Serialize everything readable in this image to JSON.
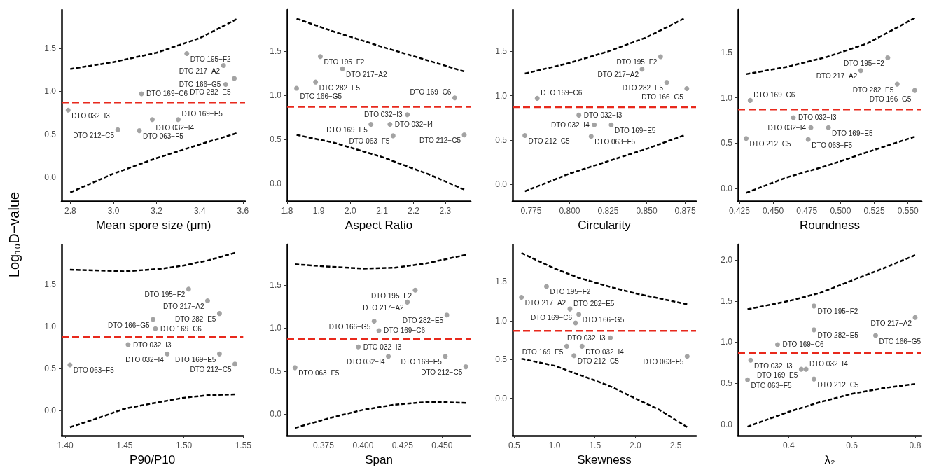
{
  "chart_data": [
    {
      "type": "scatter",
      "xlabel": "Mean spore size (μm)",
      "ylabel": "Log₁₀D−value",
      "xlim": [
        2.76,
        3.61
      ],
      "ylim": [
        -0.28,
        1.95
      ],
      "xticks": [
        {
          "value": 2.8,
          "label": "2.8"
        },
        {
          "value": 3,
          "label": "3.0"
        },
        {
          "value": 3.2,
          "label": "3.2"
        },
        {
          "value": 3.4,
          "label": "3.4"
        },
        {
          "value": 3.6,
          "label": "3.6"
        }
      ],
      "yticks": [
        {
          "value": 0,
          "label": "0.0"
        },
        {
          "value": 0.5,
          "label": "0.5"
        },
        {
          "value": 1,
          "label": "1.0"
        },
        {
          "value": 1.5,
          "label": "1.5"
        }
      ],
      "series": [
        {
          "marker": "circle",
          "color": "#8c8c8c",
          "x": [
            3.34,
            3.51,
            3.56,
            3.52,
            3.13,
            2.79,
            3.18,
            3.3,
            3.02,
            3.12
          ],
          "values": [
            1.44,
            1.3,
            1.15,
            1.08,
            0.97,
            0.78,
            0.67,
            0.67,
            0.55,
            0.54
          ]
        },
        {
          "type": "line",
          "marker": "none",
          "line_style": "dashed",
          "color": "#000000",
          "x": [
            2.8,
            3.0,
            3.2,
            3.4,
            3.57
          ],
          "values": [
            1.26,
            1.34,
            1.45,
            1.62,
            1.84
          ]
        },
        {
          "type": "line",
          "marker": "none",
          "line_style": "dashed",
          "color": "#000000",
          "x": [
            2.8,
            3.0,
            3.2,
            3.4,
            3.57
          ],
          "values": [
            -0.18,
            0.04,
            0.22,
            0.38,
            0.51
          ]
        }
      ],
      "ref_lines": [
        {
          "axis": "y",
          "value": 0.87,
          "color": "#e8291c",
          "line_style": "dashed"
        }
      ],
      "annotations": [
        {
          "text": "DTO 195−F2",
          "x": 3.34,
          "y": 1.44
        },
        {
          "text": "DTO 217−A2",
          "x": 3.51,
          "y": 1.3
        },
        {
          "text": "DTO 282−E5",
          "x": 3.56,
          "y": 1.15
        },
        {
          "text": "DTO 166−G5",
          "x": 3.52,
          "y": 1.08
        },
        {
          "text": "DTO 169−C6",
          "x": 3.13,
          "y": 0.97
        },
        {
          "text": "DTO 032−I3",
          "x": 2.79,
          "y": 0.78
        },
        {
          "text": "DTO 032−I4",
          "x": 3.18,
          "y": 0.67
        },
        {
          "text": "DTO 169−E5",
          "x": 3.3,
          "y": 0.67
        },
        {
          "text": "DTO 212−C5",
          "x": 3.02,
          "y": 0.55
        },
        {
          "text": "DTO 063−F5",
          "x": 3.12,
          "y": 0.54
        }
      ]
    },
    {
      "type": "scatter",
      "xlabel": "Aspect Ratio",
      "xlim": [
        1.8,
        2.38
      ],
      "ylim": [
        -0.2,
        1.97
      ],
      "xticks": [
        {
          "value": 1.8,
          "label": "1.8"
        },
        {
          "value": 1.9,
          "label": "1.9"
        },
        {
          "value": 2,
          "label": "2.0"
        },
        {
          "value": 2.1,
          "label": "2.1"
        },
        {
          "value": 2.2,
          "label": "2.2"
        },
        {
          "value": 2.3,
          "label": "2.3"
        }
      ],
      "yticks": [
        {
          "value": 0,
          "label": "0.0"
        },
        {
          "value": 0.5,
          "label": "0.5"
        },
        {
          "value": 1,
          "label": "1.0"
        },
        {
          "value": 1.5,
          "label": "1.5"
        }
      ],
      "series": [
        {
          "marker": "circle",
          "color": "#8c8c8c",
          "x": [
            1.905,
            1.975,
            1.89,
            1.83,
            2.33,
            2.18,
            2.125,
            2.065,
            2.36,
            2.135
          ],
          "values": [
            1.44,
            1.3,
            1.15,
            1.08,
            0.97,
            0.78,
            0.67,
            0.67,
            0.55,
            0.54
          ]
        },
        {
          "type": "line",
          "marker": "none",
          "line_style": "dashed",
          "color": "#000000",
          "x": [
            1.83,
            1.95,
            2.1,
            2.25,
            2.36
          ],
          "values": [
            1.87,
            1.72,
            1.55,
            1.39,
            1.27
          ]
        },
        {
          "type": "line",
          "marker": "none",
          "line_style": "dashed",
          "color": "#000000",
          "x": [
            1.83,
            1.95,
            2.1,
            2.25,
            2.36
          ],
          "values": [
            0.55,
            0.46,
            0.3,
            0.1,
            -0.07
          ]
        }
      ],
      "ref_lines": [
        {
          "axis": "y",
          "value": 0.87,
          "color": "#e8291c",
          "line_style": "dashed"
        }
      ],
      "annotations": [
        {
          "text": "DTO 195−F2",
          "x": 1.905,
          "y": 1.44
        },
        {
          "text": "DTO 217−A2",
          "x": 1.975,
          "y": 1.3
        },
        {
          "text": "DTO 282−E5",
          "x": 1.89,
          "y": 1.15
        },
        {
          "text": "DTO 166−G5",
          "x": 1.83,
          "y": 1.08
        },
        {
          "text": "DTO 169−C6",
          "x": 2.33,
          "y": 0.97
        },
        {
          "text": "DTO 032−I3",
          "x": 2.18,
          "y": 0.78
        },
        {
          "text": "DTO 032−I4",
          "x": 2.125,
          "y": 0.67
        },
        {
          "text": "DTO 169−E5",
          "x": 2.065,
          "y": 0.67
        },
        {
          "text": "DTO 212−C5",
          "x": 2.36,
          "y": 0.55
        },
        {
          "text": "DTO 063−F5",
          "x": 2.135,
          "y": 0.54
        }
      ]
    },
    {
      "type": "scatter",
      "xlabel": "Circularity",
      "xlim": [
        0.763,
        0.882
      ],
      "ylim": [
        -0.19,
        1.97
      ],
      "xticks": [
        {
          "value": 0.775,
          "label": "0.775"
        },
        {
          "value": 0.8,
          "label": "0.800"
        },
        {
          "value": 0.825,
          "label": "0.825"
        },
        {
          "value": 0.85,
          "label": "0.850"
        },
        {
          "value": 0.875,
          "label": "0.875"
        }
      ],
      "yticks": [
        {
          "value": 0,
          "label": "0.0"
        },
        {
          "value": 0.5,
          "label": "0.5"
        },
        {
          "value": 1,
          "label": "1.0"
        },
        {
          "value": 1.5,
          "label": "1.5"
        }
      ],
      "series": [
        {
          "marker": "circle",
          "color": "#8c8c8c",
          "x": [
            0.859,
            0.847,
            0.863,
            0.876,
            0.779,
            0.806,
            0.816,
            0.827,
            0.771,
            0.814
          ],
          "values": [
            1.44,
            1.3,
            1.15,
            1.08,
            0.97,
            0.78,
            0.67,
            0.67,
            0.55,
            0.54
          ]
        },
        {
          "type": "line",
          "marker": "none",
          "line_style": "dashed",
          "color": "#000000",
          "x": [
            0.771,
            0.8,
            0.825,
            0.85,
            0.874
          ],
          "values": [
            1.25,
            1.37,
            1.5,
            1.66,
            1.87
          ]
        },
        {
          "type": "line",
          "marker": "none",
          "line_style": "dashed",
          "color": "#000000",
          "x": [
            0.771,
            0.8,
            0.825,
            0.85,
            0.874
          ],
          "values": [
            -0.08,
            0.12,
            0.26,
            0.4,
            0.55
          ]
        }
      ],
      "ref_lines": [
        {
          "axis": "y",
          "value": 0.87,
          "color": "#e8291c",
          "line_style": "dashed"
        }
      ],
      "annotations": [
        {
          "text": "DTO 195−F2",
          "x": 0.859,
          "y": 1.44
        },
        {
          "text": "DTO 217−A2",
          "x": 0.847,
          "y": 1.3
        },
        {
          "text": "DTO 282−E5",
          "x": 0.863,
          "y": 1.15
        },
        {
          "text": "DTO 166−G5",
          "x": 0.876,
          "y": 1.08
        },
        {
          "text": "DTO 169−C6",
          "x": 0.779,
          "y": 0.97
        },
        {
          "text": "DTO 032−I3",
          "x": 0.806,
          "y": 0.78
        },
        {
          "text": "DTO 032−I4",
          "x": 0.816,
          "y": 0.67
        },
        {
          "text": "DTO 169−E5",
          "x": 0.827,
          "y": 0.67
        },
        {
          "text": "DTO 212−C5",
          "x": 0.771,
          "y": 0.55
        },
        {
          "text": "DTO 063−F5",
          "x": 0.814,
          "y": 0.54
        }
      ]
    },
    {
      "type": "scatter",
      "xlabel": "Roundness",
      "xlim": [
        0.424,
        0.56
      ],
      "ylim": [
        -0.14,
        1.97
      ],
      "xticks": [
        {
          "value": 0.425,
          "label": "0.425"
        },
        {
          "value": 0.45,
          "label": "0.450"
        },
        {
          "value": 0.475,
          "label": "0.475"
        },
        {
          "value": 0.5,
          "label": "0.500"
        },
        {
          "value": 0.525,
          "label": "0.525"
        },
        {
          "value": 0.55,
          "label": "0.550"
        }
      ],
      "yticks": [
        {
          "value": 0,
          "label": "0.0"
        },
        {
          "value": 0.5,
          "label": "0.5"
        },
        {
          "value": 1,
          "label": "1.0"
        },
        {
          "value": 1.5,
          "label": "1.5"
        }
      ],
      "series": [
        {
          "marker": "circle",
          "color": "#8c8c8c",
          "x": [
            0.535,
            0.515,
            0.542,
            0.555,
            0.433,
            0.465,
            0.478,
            0.491,
            0.43,
            0.476
          ],
          "values": [
            1.44,
            1.3,
            1.15,
            1.08,
            0.97,
            0.78,
            0.67,
            0.67,
            0.55,
            0.54
          ]
        },
        {
          "type": "line",
          "marker": "none",
          "line_style": "dashed",
          "color": "#000000",
          "x": [
            0.43,
            0.46,
            0.49,
            0.52,
            0.555
          ],
          "values": [
            1.26,
            1.34,
            1.45,
            1.6,
            1.88
          ]
        },
        {
          "type": "line",
          "marker": "none",
          "line_style": "dashed",
          "color": "#000000",
          "x": [
            0.43,
            0.46,
            0.49,
            0.52,
            0.555
          ],
          "values": [
            -0.05,
            0.12,
            0.25,
            0.4,
            0.57
          ]
        }
      ],
      "ref_lines": [
        {
          "axis": "y",
          "value": 0.87,
          "color": "#e8291c",
          "line_style": "dashed"
        }
      ],
      "annotations": [
        {
          "text": "DTO 195−F2",
          "x": 0.535,
          "y": 1.44
        },
        {
          "text": "DTO 217−A2",
          "x": 0.515,
          "y": 1.3
        },
        {
          "text": "DTO 282−E5",
          "x": 0.542,
          "y": 1.15
        },
        {
          "text": "DTO 166−G5",
          "x": 0.555,
          "y": 1.08
        },
        {
          "text": "DTO 169−C6",
          "x": 0.433,
          "y": 0.97
        },
        {
          "text": "DTO 032−I3",
          "x": 0.465,
          "y": 0.78
        },
        {
          "text": "DTO 032−I4",
          "x": 0.478,
          "y": 0.67
        },
        {
          "text": "DTO 169−E5",
          "x": 0.491,
          "y": 0.67
        },
        {
          "text": "DTO 212−C5",
          "x": 0.43,
          "y": 0.55
        },
        {
          "text": "DTO 063−F5",
          "x": 0.476,
          "y": 0.54
        }
      ]
    },
    {
      "type": "scatter",
      "xlabel": "P90/P10",
      "xlim": [
        1.397,
        1.55
      ],
      "ylim": [
        -0.3,
        1.97
      ],
      "xticks": [
        {
          "value": 1.4,
          "label": "1.40"
        },
        {
          "value": 1.45,
          "label": "1.45"
        },
        {
          "value": 1.5,
          "label": "1.50"
        },
        {
          "value": 1.55,
          "label": "1.55"
        }
      ],
      "yticks": [
        {
          "value": 0,
          "label": "0.0"
        },
        {
          "value": 0.5,
          "label": "0.5"
        },
        {
          "value": 1,
          "label": "1.0"
        },
        {
          "value": 1.5,
          "label": "1.5"
        }
      ],
      "series": [
        {
          "marker": "circle",
          "color": "#8c8c8c",
          "x": [
            1.504,
            1.52,
            1.53,
            1.474,
            1.476,
            1.453,
            1.486,
            1.53,
            1.543,
            1.404
          ],
          "values": [
            1.44,
            1.3,
            1.15,
            1.08,
            0.97,
            0.78,
            0.67,
            0.67,
            0.55,
            0.54
          ]
        },
        {
          "type": "line",
          "marker": "none",
          "line_style": "dashed",
          "color": "#000000",
          "x": [
            1.404,
            1.43,
            1.45,
            1.48,
            1.5,
            1.52,
            1.543
          ],
          "values": [
            1.67,
            1.66,
            1.65,
            1.68,
            1.72,
            1.78,
            1.87
          ]
        },
        {
          "type": "line",
          "marker": "none",
          "line_style": "dashed",
          "color": "#000000",
          "x": [
            1.404,
            1.43,
            1.45,
            1.48,
            1.5,
            1.52,
            1.543
          ],
          "values": [
            -0.2,
            -0.08,
            0.02,
            0.1,
            0.15,
            0.18,
            0.19
          ]
        }
      ],
      "ref_lines": [
        {
          "axis": "y",
          "value": 0.87,
          "color": "#e8291c",
          "line_style": "dashed"
        }
      ],
      "annotations": [
        {
          "text": "DTO 195−F2",
          "x": 1.504,
          "y": 1.44
        },
        {
          "text": "DTO 217−A2",
          "x": 1.52,
          "y": 1.3
        },
        {
          "text": "DTO 282−E5",
          "x": 1.53,
          "y": 1.15
        },
        {
          "text": "DTO 166−G5",
          "x": 1.474,
          "y": 1.08
        },
        {
          "text": "DTO 169−C6",
          "x": 1.476,
          "y": 0.97
        },
        {
          "text": "DTO 032−I3",
          "x": 1.453,
          "y": 0.78
        },
        {
          "text": "DTO 032−I4",
          "x": 1.486,
          "y": 0.67
        },
        {
          "text": "DTO 169−E5",
          "x": 1.53,
          "y": 0.67
        },
        {
          "text": "DTO 212−C5",
          "x": 1.543,
          "y": 0.55
        },
        {
          "text": "DTO 063−F5",
          "x": 1.404,
          "y": 0.54
        }
      ]
    },
    {
      "type": "scatter",
      "xlabel": "Span",
      "xlim": [
        0.352,
        0.468
      ],
      "ylim": [
        -0.25,
        1.97
      ],
      "xticks": [
        {
          "value": 0.375,
          "label": "0.375"
        },
        {
          "value": 0.4,
          "label": "0.400"
        },
        {
          "value": 0.425,
          "label": "0.425"
        },
        {
          "value": 0.45,
          "label": "0.450"
        }
      ],
      "yticks": [
        {
          "value": 0,
          "label": "0.0"
        },
        {
          "value": 0.5,
          "label": "0.5"
        },
        {
          "value": 1,
          "label": "1.0"
        },
        {
          "value": 1.5,
          "label": "1.5"
        }
      ],
      "series": [
        {
          "marker": "circle",
          "color": "#8c8c8c",
          "x": [
            0.433,
            0.428,
            0.453,
            0.407,
            0.41,
            0.397,
            0.416,
            0.452,
            0.465,
            0.357
          ],
          "values": [
            1.44,
            1.3,
            1.15,
            1.08,
            0.97,
            0.78,
            0.67,
            0.67,
            0.55,
            0.54
          ]
        },
        {
          "type": "line",
          "marker": "none",
          "line_style": "dashed",
          "color": "#000000",
          "x": [
            0.357,
            0.38,
            0.4,
            0.42,
            0.44,
            0.465
          ],
          "values": [
            1.74,
            1.71,
            1.69,
            1.7,
            1.75,
            1.85
          ]
        },
        {
          "type": "line",
          "marker": "none",
          "line_style": "dashed",
          "color": "#000000",
          "x": [
            0.357,
            0.38,
            0.4,
            0.42,
            0.44,
            0.45,
            0.465
          ],
          "values": [
            -0.16,
            -0.04,
            0.05,
            0.11,
            0.14,
            0.14,
            0.13
          ]
        }
      ],
      "ref_lines": [
        {
          "axis": "y",
          "value": 0.87,
          "color": "#e8291c",
          "line_style": "dashed"
        }
      ],
      "annotations": [
        {
          "text": "DTO 195−F2",
          "x": 0.433,
          "y": 1.44
        },
        {
          "text": "DTO 217−A2",
          "x": 0.428,
          "y": 1.3
        },
        {
          "text": "DTO 282−E5",
          "x": 0.453,
          "y": 1.15
        },
        {
          "text": "DTO 166−G5",
          "x": 0.407,
          "y": 1.08
        },
        {
          "text": "DTO 169−C6",
          "x": 0.41,
          "y": 0.97
        },
        {
          "text": "DTO 032−I3",
          "x": 0.397,
          "y": 0.78
        },
        {
          "text": "DTO 032−I4",
          "x": 0.416,
          "y": 0.67
        },
        {
          "text": "DTO 169−E5",
          "x": 0.452,
          "y": 0.67
        },
        {
          "text": "DTO 212−C5",
          "x": 0.465,
          "y": 0.55
        },
        {
          "text": "DTO 063−F5",
          "x": 0.357,
          "y": 0.54
        }
      ]
    },
    {
      "type": "scatter",
      "xlabel": "Skewness",
      "xlim": [
        0.48,
        2.75
      ],
      "ylim": [
        -0.48,
        1.98
      ],
      "xticks": [
        {
          "value": 0.5,
          "label": "0.5"
        },
        {
          "value": 1,
          "label": "1.0"
        },
        {
          "value": 1.5,
          "label": "1.5"
        },
        {
          "value": 2,
          "label": "2.0"
        },
        {
          "value": 2.5,
          "label": "2.5"
        }
      ],
      "yticks": [
        {
          "value": 0,
          "label": "0.0"
        },
        {
          "value": 0.5,
          "label": "0.5"
        },
        {
          "value": 1,
          "label": "1.0"
        },
        {
          "value": 1.5,
          "label": "1.5"
        }
      ],
      "series": [
        {
          "marker": "circle",
          "color": "#8c8c8c",
          "x": [
            0.9,
            0.59,
            1.19,
            1.3,
            1.26,
            1.69,
            1.34,
            1.15,
            1.24,
            2.64
          ],
          "values": [
            1.44,
            1.3,
            1.15,
            1.08,
            0.97,
            0.78,
            0.67,
            0.67,
            0.55,
            0.54
          ]
        },
        {
          "type": "line",
          "marker": "none",
          "line_style": "dashed",
          "color": "#000000",
          "x": [
            0.59,
            1.0,
            1.3,
            1.7,
            2.0,
            2.64
          ],
          "values": [
            1.87,
            1.67,
            1.55,
            1.43,
            1.35,
            1.21
          ]
        },
        {
          "type": "line",
          "marker": "none",
          "line_style": "dashed",
          "color": "#000000",
          "x": [
            0.59,
            1.0,
            1.5,
            1.7,
            2.0,
            2.3,
            2.64
          ],
          "values": [
            0.51,
            0.42,
            0.23,
            0.15,
            0.0,
            -0.15,
            -0.37
          ]
        }
      ],
      "ref_lines": [
        {
          "axis": "y",
          "value": 0.87,
          "color": "#e8291c",
          "line_style": "dashed"
        }
      ],
      "annotations": [
        {
          "text": "DTO 195−F2",
          "x": 0.9,
          "y": 1.44
        },
        {
          "text": "DTO 217−A2",
          "x": 0.59,
          "y": 1.3
        },
        {
          "text": "DTO 282−E5",
          "x": 1.19,
          "y": 1.15
        },
        {
          "text": "DTO 166−G5",
          "x": 1.3,
          "y": 1.08
        },
        {
          "text": "DTO 169−C6",
          "x": 1.26,
          "y": 0.97
        },
        {
          "text": "DTO 032−I3",
          "x": 1.69,
          "y": 0.78
        },
        {
          "text": "DTO 032−I4",
          "x": 1.34,
          "y": 0.67
        },
        {
          "text": "DTO 169−E5",
          "x": 1.15,
          "y": 0.67
        },
        {
          "text": "DTO 212−C5",
          "x": 1.24,
          "y": 0.55
        },
        {
          "text": "DTO 063−F5",
          "x": 2.64,
          "y": 0.54
        }
      ]
    },
    {
      "type": "scatter",
      "xlabel": "λ₂",
      "xlim": [
        0.24,
        0.82
      ],
      "ylim": [
        -0.14,
        2.19
      ],
      "xticks": [
        {
          "value": 0.4,
          "label": "0.4"
        },
        {
          "value": 0.6,
          "label": "0.6"
        },
        {
          "value": 0.8,
          "label": "0.8"
        }
      ],
      "yticks": [
        {
          "value": 0,
          "label": "0.0"
        },
        {
          "value": 0.5,
          "label": "0.5"
        },
        {
          "value": 1,
          "label": "1.0"
        },
        {
          "value": 1.5,
          "label": "1.5"
        },
        {
          "value": 2,
          "label": "2.0"
        }
      ],
      "series": [
        {
          "marker": "circle",
          "color": "#8c8c8c",
          "x": [
            0.48,
            0.8,
            0.48,
            0.675,
            0.365,
            0.28,
            0.455,
            0.44,
            0.48,
            0.27
          ],
          "values": [
            1.44,
            1.3,
            1.15,
            1.08,
            0.97,
            0.78,
            0.67,
            0.67,
            0.55,
            0.54
          ]
        },
        {
          "type": "line",
          "marker": "none",
          "line_style": "dashed",
          "color": "#000000",
          "x": [
            0.27,
            0.4,
            0.5,
            0.6,
            0.7,
            0.8
          ],
          "values": [
            1.4,
            1.5,
            1.6,
            1.75,
            1.9,
            2.06
          ]
        },
        {
          "type": "line",
          "marker": "none",
          "line_style": "dashed",
          "color": "#000000",
          "x": [
            0.27,
            0.4,
            0.5,
            0.6,
            0.7,
            0.8
          ],
          "values": [
            -0.03,
            0.15,
            0.27,
            0.37,
            0.44,
            0.49
          ]
        }
      ],
      "ref_lines": [
        {
          "axis": "y",
          "value": 0.87,
          "color": "#e8291c",
          "line_style": "dashed"
        }
      ],
      "annotations": [
        {
          "text": "DTO 195−F2",
          "x": 0.48,
          "y": 1.44
        },
        {
          "text": "DTO 217−A2",
          "x": 0.8,
          "y": 1.3
        },
        {
          "text": "DTO 282−E5",
          "x": 0.48,
          "y": 1.15
        },
        {
          "text": "DTO 166−G5",
          "x": 0.675,
          "y": 1.08
        },
        {
          "text": "DTO 169−C6",
          "x": 0.365,
          "y": 0.97
        },
        {
          "text": "DTO 032−I3",
          "x": 0.28,
          "y": 0.78
        },
        {
          "text": "DTO 032−I4",
          "x": 0.455,
          "y": 0.67
        },
        {
          "text": "DTO 169−E5",
          "x": 0.44,
          "y": 0.67
        },
        {
          "text": "DTO 212−C5",
          "x": 0.48,
          "y": 0.55
        },
        {
          "text": "DTO 063−F5",
          "x": 0.27,
          "y": 0.54
        }
      ]
    }
  ]
}
